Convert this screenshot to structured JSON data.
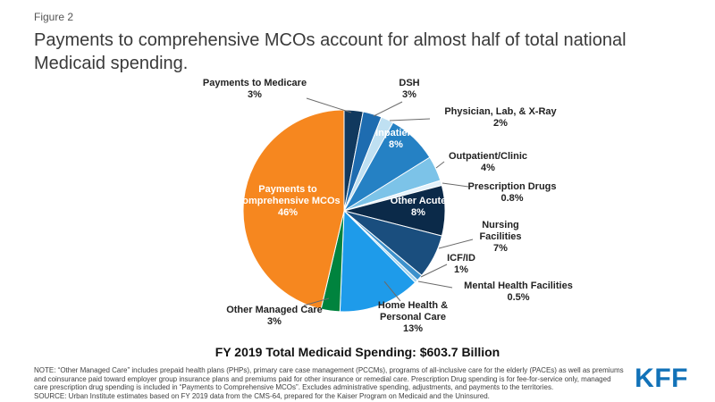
{
  "figure_label": "Figure 2",
  "title": "Payments to comprehensive MCOs account for almost half of total national Medicaid spending.",
  "chart_data": {
    "type": "pie",
    "title": "FY 2019 Total Medicaid Spending: $603.7 Billion",
    "legend_position": "labels-around-pie",
    "slices": [
      {
        "label": "Payments to Medicare",
        "pct": "3%",
        "value": 3,
        "color": "#11395E"
      },
      {
        "label": "DSH",
        "pct": "3%",
        "value": 3,
        "color": "#1E6CB0"
      },
      {
        "label": "Physician, Lab, & X-Ray",
        "pct": "2%",
        "value": 2,
        "color": "#BFE0F2"
      },
      {
        "label": "Inpatient",
        "pct": "8%",
        "value": 8,
        "color": "#2581C4",
        "label_inside": true
      },
      {
        "label": "Outpatient/Clinic",
        "pct": "4%",
        "value": 4,
        "color": "#7CC3E8"
      },
      {
        "label": "Prescription Drugs",
        "pct": "0.8%",
        "value": 0.8,
        "color": "#E3F2FB"
      },
      {
        "label": "Other Acute",
        "pct": "8%",
        "value": 8,
        "color": "#0B2A49",
        "label_inside": true
      },
      {
        "label": "Nursing Facilities",
        "pct": "7%",
        "value": 7,
        "color": "#1A4E7E"
      },
      {
        "label": "ICF/ID",
        "pct": "1%",
        "value": 1,
        "color": "#3C91CC"
      },
      {
        "label": "Mental Health Facilities",
        "pct": "0.5%",
        "value": 0.5,
        "color": "#A5D4EF"
      },
      {
        "label": "Home Health & Personal Care",
        "pct": "13%",
        "value": 13,
        "color": "#1E9BEA"
      },
      {
        "label": "Other Managed Care",
        "pct": "3%",
        "value": 3,
        "color": "#00833E"
      },
      {
        "label": "Payments to Comprehensive MCOs",
        "pct": "46%",
        "value": 46,
        "color": "#F6871F",
        "label_inside": true
      }
    ]
  },
  "note": "NOTE: “Other Managed Care” includes prepaid health plans (PHPs), primary care case management (PCCMs), programs of all-inclusive care for the elderly (PACEs) as well as premiums and coinsurance paid toward employer group insurance plans and premiums paid for other insurance or remedial care. Prescription Drug spending is for fee-for-service only, managed care prescription drug spending is included in “Payments to Comprehensive MCOs”. Excludes administrative spending, adjustments, and payments to the territories.",
  "source": "SOURCE: Urban Institute estimates based on FY 2019 data from the CMS-64, prepared for the Kaiser Program on Medicaid and the Uninsured.",
  "logo_text": "KFF",
  "colors": {
    "accent_orange": "#F6871F",
    "accent_green": "#00833E",
    "kff_blue": "#1272B8"
  }
}
